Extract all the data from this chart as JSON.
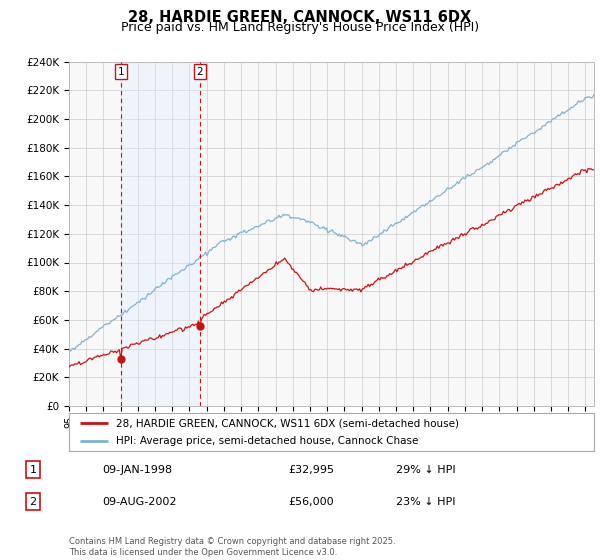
{
  "title": "28, HARDIE GREEN, CANNOCK, WS11 6DX",
  "subtitle": "Price paid vs. HM Land Registry's House Price Index (HPI)",
  "ylabel_ticks": [
    "£0",
    "£20K",
    "£40K",
    "£60K",
    "£80K",
    "£100K",
    "£120K",
    "£140K",
    "£160K",
    "£180K",
    "£200K",
    "£220K",
    "£240K"
  ],
  "ytick_values": [
    0,
    20000,
    40000,
    60000,
    80000,
    100000,
    120000,
    140000,
    160000,
    180000,
    200000,
    220000,
    240000
  ],
  "ylim": [
    0,
    240000
  ],
  "legend_line1": "28, HARDIE GREEN, CANNOCK, WS11 6DX (semi-detached house)",
  "legend_line2": "HPI: Average price, semi-detached house, Cannock Chase",
  "annotation1": {
    "label": "1",
    "date": "09-JAN-1998",
    "price": "£32,995",
    "pct": "29% ↓ HPI",
    "x_year": 1998.04,
    "y": 32995
  },
  "annotation2": {
    "label": "2",
    "date": "09-AUG-2002",
    "price": "£56,000",
    "pct": "23% ↓ HPI",
    "x_year": 2002.61,
    "y": 56000
  },
  "footnote": "Contains HM Land Registry data © Crown copyright and database right 2025.\nThis data is licensed under the Open Government Licence v3.0.",
  "hpi_color": "#7fb3d3",
  "price_color": "#cc1111",
  "shade_color": "#ddeeff",
  "background_color": "#ffffff",
  "plot_bg_color": "#f8f8f8",
  "grid_color": "#cccccc",
  "xlim_start": 1995.0,
  "xlim_end": 2025.5
}
